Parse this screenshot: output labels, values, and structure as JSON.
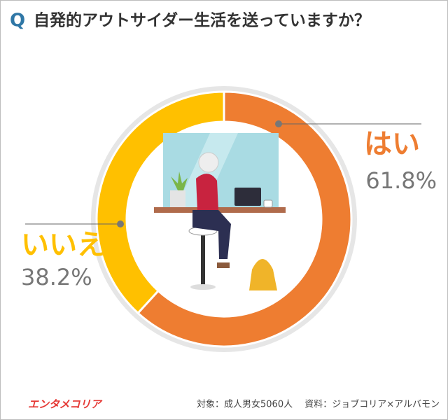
{
  "chart_data": {
    "type": "donut",
    "title_prefix": "Q",
    "title": "自発的アウトサイダー生活を送っていますか？",
    "categories": [
      "はい",
      "いいえ"
    ],
    "values": [
      61.8,
      38.2
    ],
    "value_labels": [
      "61.8%",
      "38.2%"
    ],
    "colors": [
      "#ee7d31",
      "#ffc000"
    ],
    "source": "対象：成人男女5060人　 資料：ジョブコリア×アルバモン",
    "logo": "エンタメコリア"
  }
}
